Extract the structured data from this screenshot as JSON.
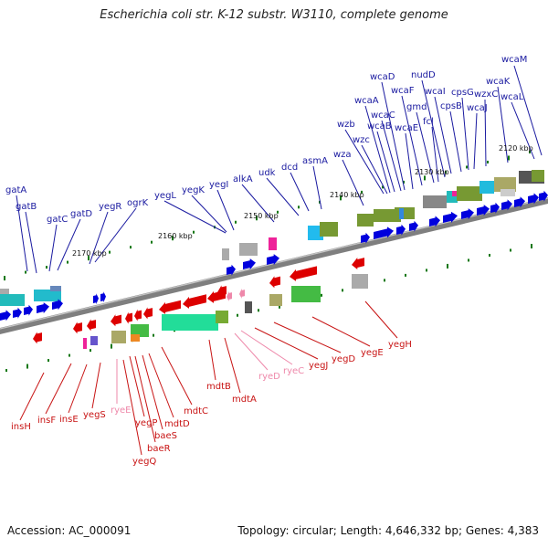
{
  "title": "Escherichia coli str. K-12 substr. W3110, complete genome",
  "footer": {
    "accession": "Accession: AC_000091",
    "topology": "Topology: circular; Length: 4,646,332 bp; Genes: 4,383"
  },
  "colors": {
    "forward_gene": "#0000dd",
    "reverse_gene": "#dd0000",
    "rna_gene": "#ee88aa",
    "backbone": "#888888",
    "tick_mark": "#117711"
  },
  "scale_labels": [
    "2120 kbp",
    "2130 kbp",
    "2140 kbp",
    "2150 kbp",
    "2160 kbp",
    "2170 kbp"
  ],
  "genes_top": [
    "gatA",
    "gatB",
    "gatC",
    "gatD",
    "yegR",
    "ogrK",
    "yegL",
    "yegK",
    "yegI",
    "alkA",
    "udk",
    "dcd",
    "asmA",
    "wza",
    "wzb",
    "wzc",
    "wcaA",
    "wcaB",
    "wcaC",
    "wcaD",
    "wcaE",
    "wcaF",
    "gmd",
    "fcl",
    "nudD",
    "wcaI",
    "cpsB",
    "cpsG",
    "wcaJ",
    "wzxC",
    "wcaK",
    "wcaL",
    "wcaM"
  ],
  "genes_bottom": [
    "insH",
    "insF",
    "insE",
    "yegS",
    "ryeE",
    "yegP",
    "baeR",
    "yegQ",
    "baeS",
    "mdtD",
    "mdtC",
    "mdtB",
    "mdtA",
    "ryeD",
    "ryeC",
    "yegJ",
    "yegD",
    "yegE",
    "yegH"
  ]
}
